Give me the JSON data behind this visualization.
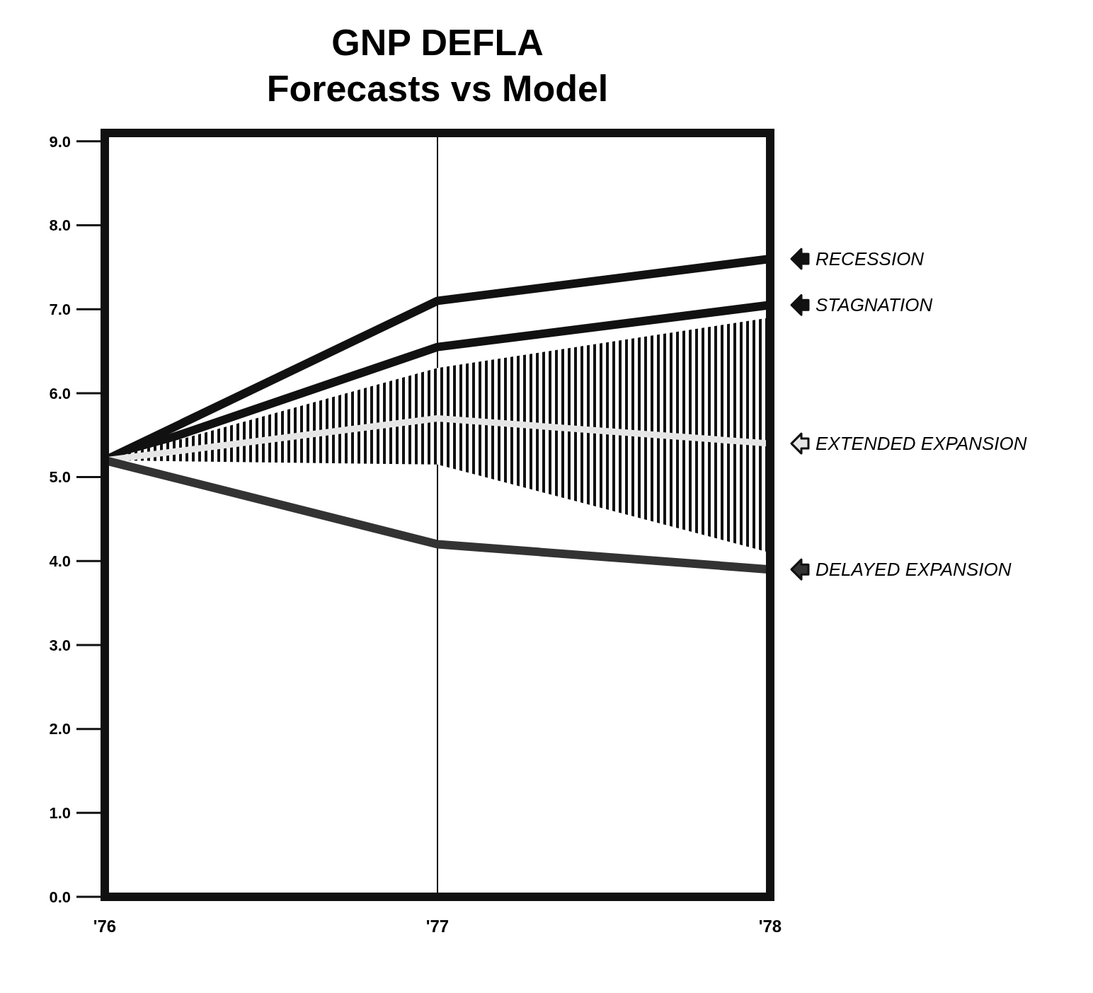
{
  "chart_data": {
    "type": "line",
    "title": "GNP DEFLA",
    "subtitle": "Forecasts vs Model",
    "categories": [
      "'76",
      "'77",
      "'78"
    ],
    "series": [
      {
        "name": "RECESSION",
        "color": "#111111",
        "values": [
          5.2,
          7.1,
          7.6
        ]
      },
      {
        "name": "STAGNATION",
        "color": "#111111",
        "values": [
          5.2,
          6.55,
          7.05
        ]
      },
      {
        "name": "EXTENDED EXPANSION",
        "color": "#e6e6e6",
        "values": [
          5.2,
          5.7,
          5.4
        ],
        "lower": [
          5.2,
          5.15,
          4.1
        ],
        "upper": [
          5.2,
          6.3,
          6.9
        ]
      },
      {
        "name": "DELAYED EXPANSION",
        "color": "#333333",
        "values": [
          5.2,
          4.2,
          3.9
        ]
      }
    ],
    "ylim": [
      0,
      9.1
    ],
    "yticks": [
      {
        "value": 0,
        "label": "0.0"
      },
      {
        "value": 1,
        "label": "1.0"
      },
      {
        "value": 2,
        "label": "2.0"
      },
      {
        "value": 3,
        "label": "3.0"
      },
      {
        "value": 4,
        "label": "4.0"
      },
      {
        "value": 5,
        "label": "5.0"
      },
      {
        "value": 6,
        "label": "6.0"
      },
      {
        "value": 7,
        "label": "7.0"
      },
      {
        "value": 8,
        "label": "8.0"
      },
      {
        "value": 9,
        "label": "9.0"
      }
    ],
    "grid": "x",
    "legend": "right",
    "marker": "none",
    "line_style": "solid"
  }
}
